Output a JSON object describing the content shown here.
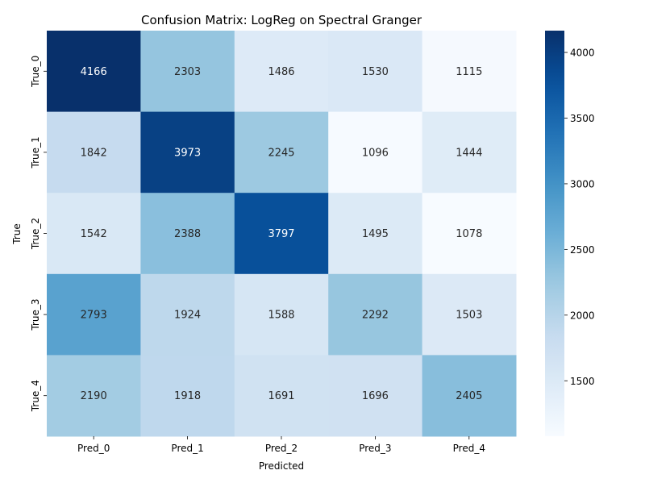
{
  "chart_data": {
    "type": "heatmap",
    "title": "Confusion Matrix: LogReg on Spectral Granger",
    "xlabel": "Predicted",
    "ylabel": "True",
    "x_categories": [
      "Pred_0",
      "Pred_1",
      "Pred_2",
      "Pred_3",
      "Pred_4"
    ],
    "y_categories": [
      "True_0",
      "True_1",
      "True_2",
      "True_3",
      "True_4"
    ],
    "values": [
      [
        4166,
        2303,
        1486,
        1530,
        1115
      ],
      [
        1842,
        3973,
        2245,
        1096,
        1444
      ],
      [
        1542,
        2388,
        3797,
        1495,
        1078
      ],
      [
        2793,
        1924,
        1588,
        2292,
        1503
      ],
      [
        2190,
        1918,
        1691,
        1696,
        2405
      ]
    ],
    "colormap": "Blues",
    "color_range": [
      1078,
      4166
    ],
    "colorbar_ticks": [
      1500,
      2000,
      2500,
      3000,
      3500,
      4000
    ],
    "colors": {
      "low": "#f7fbff",
      "high": "#08306b",
      "text_dark": "#262626",
      "text_light": "#ffffff"
    }
  }
}
